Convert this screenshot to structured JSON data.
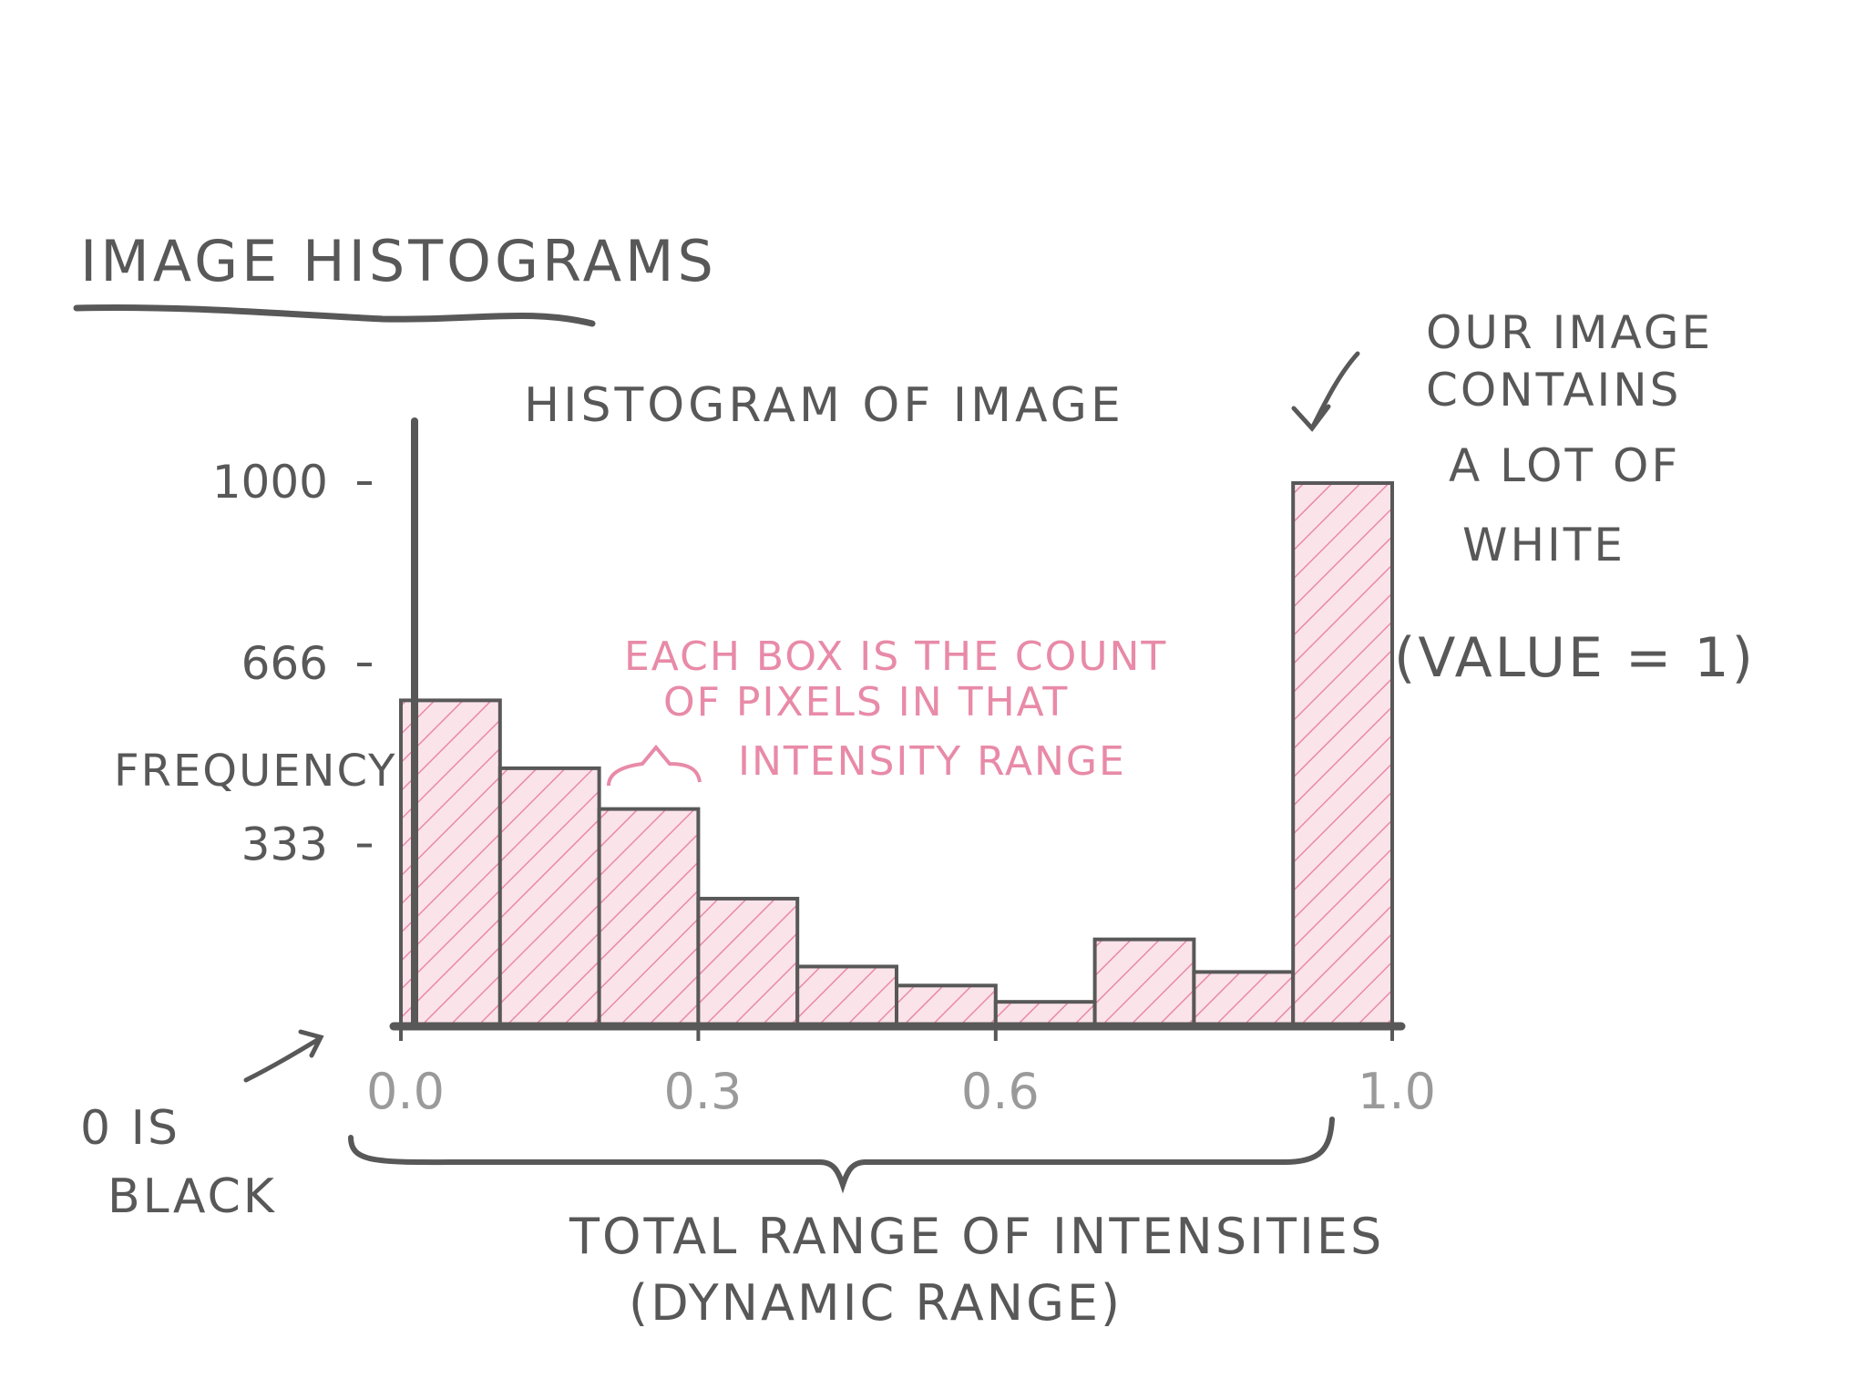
{
  "page_title": "IMAGE HISTOGRAMS",
  "colors": {
    "ink": "#585858",
    "bar_fill": "#f7c9d7",
    "hatch": "#e88aa8",
    "annotation": "#e88aa8"
  },
  "annotations": {
    "top_right": [
      "OUR IMAGE",
      "CONTAINS",
      "A LOT OF",
      "WHITE"
    ],
    "value_note": "(VALUE = 1)",
    "bin_note": [
      "EACH BOX IS THE COUNT",
      "OF PIXELS IN THAT",
      "INTENSITY RANGE"
    ],
    "black_note": [
      "0 IS",
      "BLACK"
    ],
    "range_note": [
      "TOTAL RANGE OF INTENSITIES",
      "(DYNAMIC RANGE)"
    ]
  },
  "chart_data": {
    "type": "bar",
    "title": "HISTOGRAM OF IMAGE",
    "ylabel": "FREQUENCY",
    "xlabel": "",
    "x_ticks": [
      "0.0",
      "0.3",
      "0.6",
      "1.0"
    ],
    "x_tick_values": [
      0.0,
      0.3,
      0.6,
      1.0
    ],
    "y_ticks": [
      "333",
      "666",
      "1000"
    ],
    "y_tick_values": [
      333,
      666,
      1000
    ],
    "xlim": [
      0.0,
      1.0
    ],
    "ylim": [
      0,
      1000
    ],
    "grid": false,
    "bins": [
      {
        "start": 0.0,
        "end": 0.1,
        "value": 600
      },
      {
        "start": 0.1,
        "end": 0.2,
        "value": 475
      },
      {
        "start": 0.2,
        "end": 0.3,
        "value": 400
      },
      {
        "start": 0.3,
        "end": 0.4,
        "value": 235
      },
      {
        "start": 0.4,
        "end": 0.5,
        "value": 110
      },
      {
        "start": 0.5,
        "end": 0.6,
        "value": 75
      },
      {
        "start": 0.6,
        "end": 0.7,
        "value": 45
      },
      {
        "start": 0.7,
        "end": 0.8,
        "value": 160
      },
      {
        "start": 0.8,
        "end": 0.9,
        "value": 100
      },
      {
        "start": 0.9,
        "end": 1.0,
        "value": 1000
      }
    ]
  }
}
